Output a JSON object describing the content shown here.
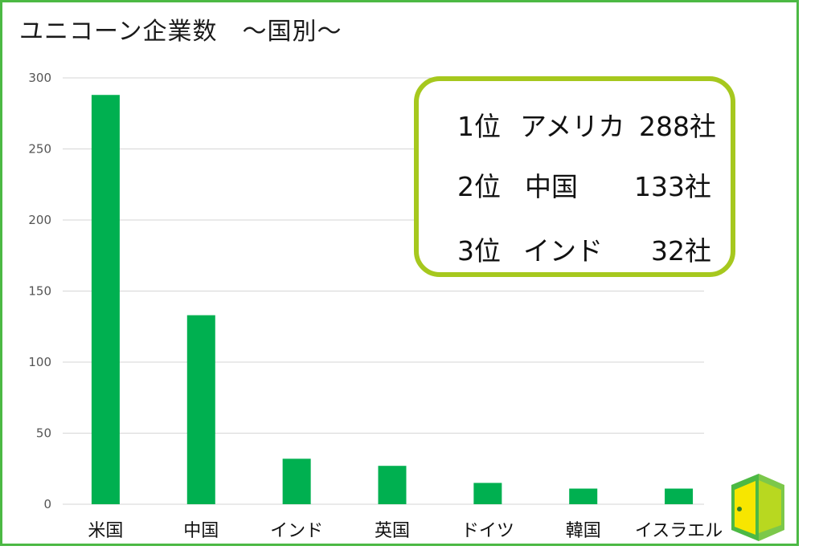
{
  "title": "ユニコーン企業数　～国別～",
  "chart_data": {
    "type": "bar",
    "categories": [
      "米国",
      "中国",
      "インド",
      "英国",
      "ドイツ",
      "韓国",
      "イスラエル"
    ],
    "values": [
      288,
      133,
      32,
      27,
      15,
      11,
      11
    ],
    "ylim": [
      0,
      300
    ],
    "yticks": [
      0,
      50,
      100,
      150,
      200,
      250,
      300
    ],
    "grid": true,
    "color": "#00b050"
  },
  "ranking": [
    {
      "rank": "1位",
      "country": "アメリカ",
      "count": "288社"
    },
    {
      "rank": "2位",
      "country": "中国",
      "count": "133社"
    },
    {
      "rank": "3位",
      "country": "インド",
      "count": "32社"
    }
  ],
  "colors": {
    "frame": "#4cb944",
    "bar": "#00b050",
    "box_border": "#a6c81e"
  },
  "logo_icon": "door-logo-icon"
}
